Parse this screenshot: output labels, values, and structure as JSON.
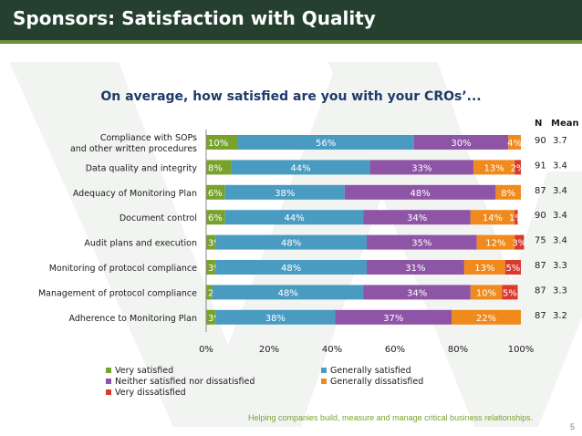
{
  "slide": {
    "title": "Sponsors: Satisfaction with Quality",
    "question": "On average, how satisfied are you with your CROs’...",
    "footer": "Helping companies build, measure and manage critical business relationships.",
    "page_number": "5"
  },
  "colors": {
    "title_bar": "#25402f",
    "question_text": "#1f3a6b",
    "footer_text": "#7aa233"
  },
  "chart_data": {
    "type": "bar",
    "orientation": "horizontal",
    "stacked": true,
    "categories": [
      "Compliance with SOPs\nand other written procedures",
      "Data quality and integrity",
      "Adequacy of Monitoring Plan",
      "Document control",
      "Audit plans and execution",
      "Monitoring of protocol compliance",
      "Management of protocol compliance",
      "Adherence to Monitoring Plan"
    ],
    "series": [
      {
        "name": "Very satisfied",
        "color": "#77a22b",
        "values": [
          10,
          8,
          6,
          6,
          3,
          3,
          2,
          3
        ]
      },
      {
        "name": "Generally satisfied",
        "color": "#4a9bc2",
        "values": [
          56,
          44,
          38,
          44,
          48,
          48,
          48,
          38
        ]
      },
      {
        "name": "Neither satisfied nor dissatisfied",
        "color": "#8e55a6",
        "values": [
          30,
          33,
          48,
          34,
          35,
          31,
          34,
          37
        ]
      },
      {
        "name": "Generally dissatisfied",
        "color": "#f08a1c",
        "values": [
          4,
          13,
          8,
          14,
          12,
          13,
          10,
          22
        ]
      },
      {
        "name": "Very dissatisfied",
        "color": "#d93a2e",
        "values": [
          0,
          2,
          0,
          1,
          3,
          5,
          5,
          0
        ]
      }
    ],
    "data_labels": [
      [
        "10%",
        "56%",
        "30%",
        "4%",
        ""
      ],
      [
        "8%",
        "44%",
        "33%",
        "13%",
        "2%"
      ],
      [
        "6%",
        "38%",
        "48%",
        "8%",
        ""
      ],
      [
        "6%",
        "44%",
        "34%",
        "14%",
        "1%"
      ],
      [
        "3%",
        "48%",
        "35%",
        "12%",
        "3%"
      ],
      [
        "3%",
        "48%",
        "31%",
        "13%",
        "5%"
      ],
      [
        "2%",
        "48%",
        "34%",
        "10%",
        "5%"
      ],
      [
        "3%",
        "38%",
        "37%",
        "22%",
        ""
      ]
    ],
    "xlim": [
      0,
      100
    ],
    "x_ticks": [
      "0%",
      "20%",
      "40%",
      "60%",
      "80%",
      "100%"
    ],
    "stats": {
      "headers": [
        "N",
        "Mean"
      ],
      "n": [
        "90",
        "91",
        "87",
        "90",
        "75",
        "87",
        "87",
        "87"
      ],
      "mean": [
        "3.7",
        "3.4",
        "3.4",
        "3.4",
        "3.4",
        "3.3",
        "3.3",
        "3.2"
      ]
    },
    "legend_position": "bottom",
    "grid": false
  }
}
